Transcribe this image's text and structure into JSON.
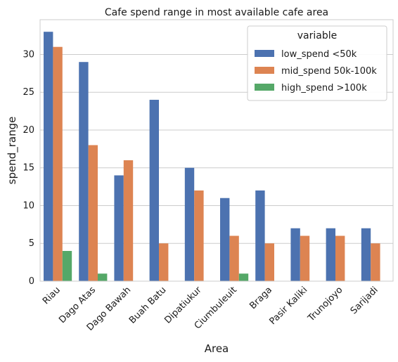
{
  "chart_data": {
    "type": "bar",
    "title": "Cafe spend range in most available cafe area",
    "xlabel": "Area",
    "ylabel": "spend_range",
    "ylim": [
      0,
      34.6
    ],
    "yticks": [
      0,
      5,
      10,
      15,
      20,
      25,
      30
    ],
    "grid": true,
    "legend": {
      "title": "variable",
      "placement": "top-right"
    },
    "categories": [
      "Riau",
      "Dago Atas",
      "Dago Bawah",
      "Buah Batu",
      "Dipatiukur",
      "Ciumbuleuit",
      "Braga",
      "Pasir Kaliki",
      "Trunojoyo",
      "Sarijadi"
    ],
    "series": [
      {
        "name": "low_spend <50k",
        "color": "#4c72b0",
        "values": [
          33,
          29,
          14,
          24,
          15,
          11,
          12,
          7,
          7,
          7
        ]
      },
      {
        "name": "mid_spend 50k-100k",
        "color": "#dd8452",
        "values": [
          31,
          18,
          16,
          5,
          12,
          6,
          5,
          6,
          6,
          5
        ]
      },
      {
        "name": "high_spend >100k",
        "color": "#55a868",
        "values": [
          4,
          1,
          0,
          0,
          0,
          1,
          0,
          0,
          0,
          0
        ]
      }
    ]
  }
}
